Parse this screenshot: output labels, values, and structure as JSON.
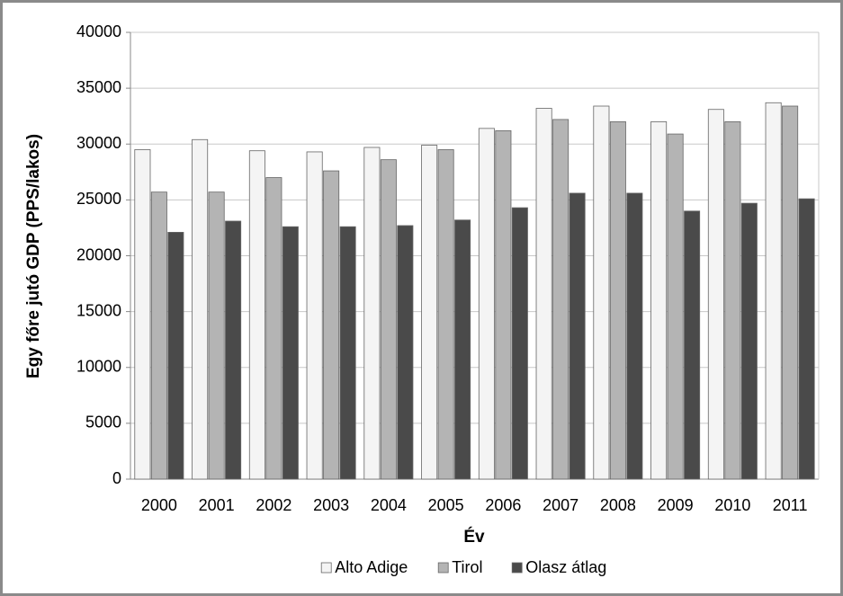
{
  "chart_data": {
    "type": "bar",
    "y_label": "Egy főre jutó GDP (PPS/lakos)",
    "x_label": "Év",
    "categories": [
      "2000",
      "2001",
      "2002",
      "2003",
      "2004",
      "2005",
      "2006",
      "2007",
      "2008",
      "2009",
      "2010",
      "2011"
    ],
    "series": [
      {
        "name": "Alto Adige",
        "color": "#f4f4f4",
        "values": [
          29500,
          30400,
          29400,
          29300,
          29700,
          29900,
          31400,
          33200,
          33400,
          32000,
          33100,
          33700
        ]
      },
      {
        "name": "Tirol",
        "color": "#b4b4b4",
        "values": [
          25700,
          25700,
          27000,
          27600,
          28600,
          29500,
          31200,
          32200,
          32000,
          30900,
          32000,
          33400
        ]
      },
      {
        "name": "Olasz átlag",
        "color": "#4a4a4a",
        "values": [
          22100,
          23100,
          22600,
          22600,
          22700,
          23200,
          24300,
          25600,
          25600,
          24000,
          24700,
          25100
        ]
      }
    ],
    "ylim": [
      0,
      40000
    ],
    "yticks": [
      0,
      5000,
      10000,
      15000,
      20000,
      25000,
      30000,
      35000,
      40000
    ],
    "grid": true,
    "legend": "bottom"
  }
}
